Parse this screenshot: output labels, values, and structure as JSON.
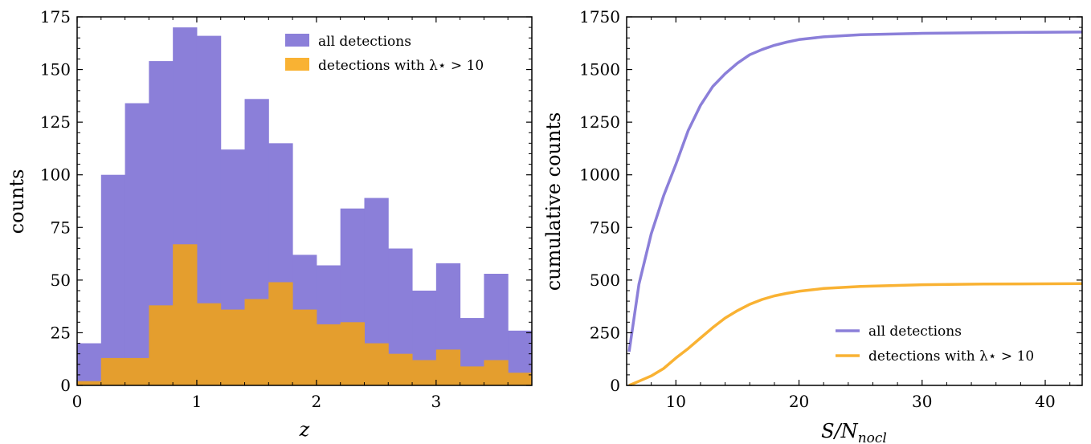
{
  "colors": {
    "all": "#8B7FD9",
    "lambda": "#F9B233",
    "overlap": "#E49E2E",
    "axis": "#000000"
  },
  "chart_data": [
    {
      "type": "bar",
      "subtype": "histogram",
      "xlabel": "z",
      "ylabel": "counts",
      "xlim": [
        0,
        3.8
      ],
      "ylim": [
        0,
        175
      ],
      "xticks": [
        "0",
        "1",
        "2",
        "3"
      ],
      "xtick_values": [
        0,
        1,
        2,
        3
      ],
      "yticks": [
        "0",
        "25",
        "50",
        "75",
        "100",
        "125",
        "150",
        "175"
      ],
      "ytick_values": [
        0,
        25,
        50,
        75,
        100,
        125,
        150,
        175
      ],
      "bin_edges": [
        0,
        0.2,
        0.4,
        0.6,
        0.8,
        1.0,
        1.2,
        1.4,
        1.6,
        1.8,
        2.0,
        2.2,
        2.4,
        2.6,
        2.8,
        3.0,
        3.2,
        3.4,
        3.6,
        3.8
      ],
      "series": [
        {
          "name": "all detections",
          "values": [
            20,
            100,
            134,
            154,
            170,
            166,
            112,
            136,
            115,
            62,
            57,
            84,
            89,
            65,
            45,
            58,
            32,
            53,
            26
          ]
        },
        {
          "name": "detections with λ⋆ > 10",
          "values": [
            2,
            13,
            13,
            38,
            67,
            39,
            36,
            41,
            49,
            36,
            29,
            30,
            20,
            15,
            12,
            17,
            9,
            12,
            6
          ]
        }
      ],
      "legend_position": "top-right"
    },
    {
      "type": "line",
      "xlabel": "S/N",
      "xlabel_sub": "nocl",
      "ylabel": "cumulative counts",
      "xlim": [
        6,
        43
      ],
      "ylim": [
        0,
        1750
      ],
      "xticks": [
        "10",
        "20",
        "30",
        "40"
      ],
      "xtick_values": [
        10,
        20,
        30,
        40
      ],
      "yticks": [
        "0",
        "250",
        "500",
        "750",
        "1000",
        "1250",
        "1500",
        "1750"
      ],
      "ytick_values": [
        0,
        250,
        500,
        750,
        1000,
        1250,
        1500,
        1750
      ],
      "series": [
        {
          "name": "all detections",
          "x": [
            6.2,
            7,
            8,
            9,
            10,
            11,
            12,
            13,
            14,
            15,
            16,
            17,
            18,
            19,
            20,
            22,
            25,
            30,
            35,
            43
          ],
          "y": [
            160,
            480,
            720,
            900,
            1050,
            1210,
            1330,
            1420,
            1480,
            1530,
            1570,
            1595,
            1615,
            1630,
            1642,
            1655,
            1665,
            1672,
            1675,
            1678
          ]
        },
        {
          "name": "detections with λ⋆ > 10",
          "x": [
            6.2,
            7,
            8,
            9,
            10,
            11,
            12,
            13,
            14,
            15,
            16,
            17,
            18,
            19,
            20,
            22,
            25,
            30,
            35,
            43
          ],
          "y": [
            0,
            20,
            45,
            80,
            130,
            175,
            225,
            275,
            320,
            355,
            385,
            408,
            425,
            437,
            447,
            460,
            470,
            478,
            481,
            483
          ]
        }
      ],
      "legend_position": "bottom-right"
    }
  ]
}
